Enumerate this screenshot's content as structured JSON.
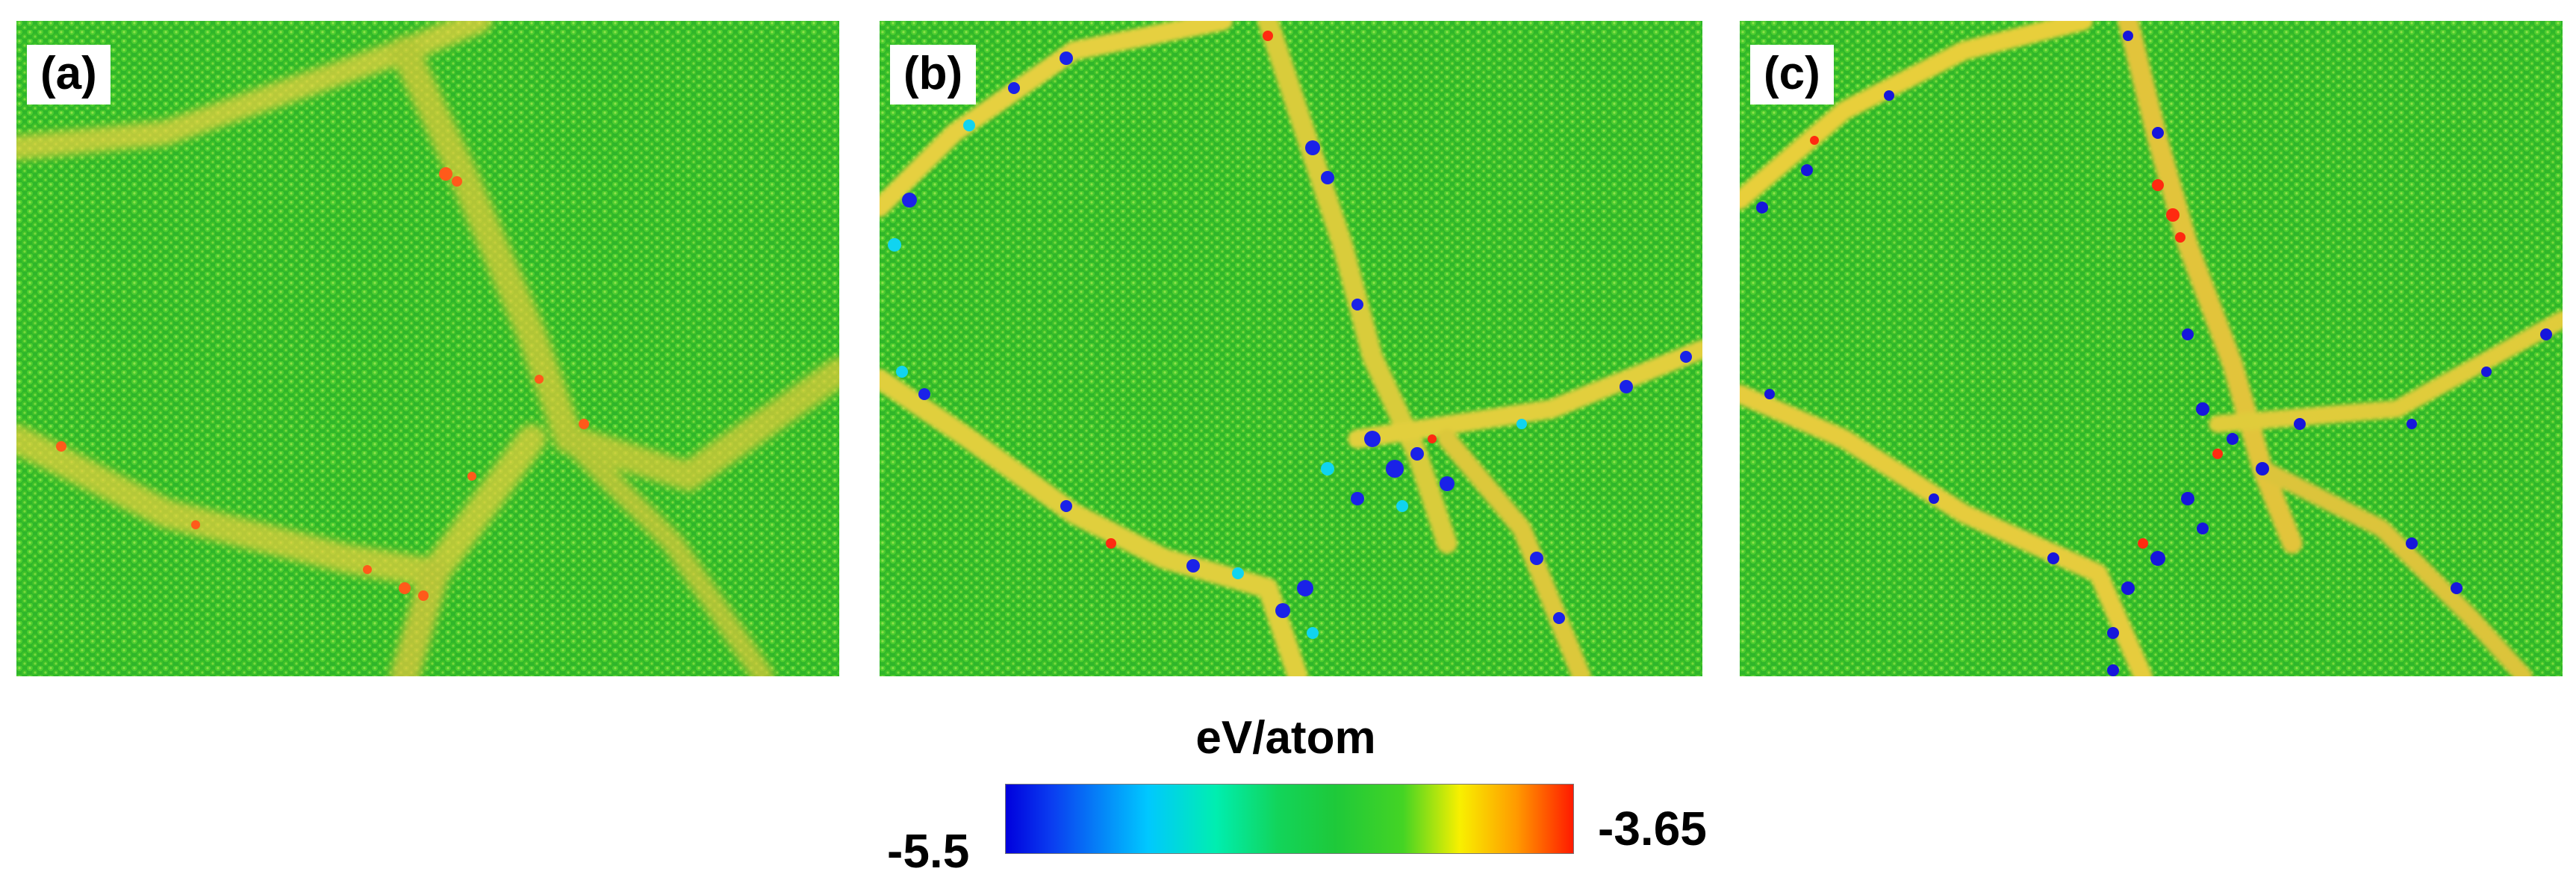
{
  "panels": [
    {
      "id": "a",
      "label": "(a)"
    },
    {
      "id": "b",
      "label": "(b)"
    },
    {
      "id": "c",
      "label": "(c)"
    }
  ],
  "colorbar": {
    "title": "eV/atom",
    "min_label": "-5.5",
    "max_label": "-3.65",
    "colors": [
      "#0000dd",
      "#00c8ff",
      "#1ec93a",
      "#f8f000",
      "#ff1a00"
    ]
  }
}
